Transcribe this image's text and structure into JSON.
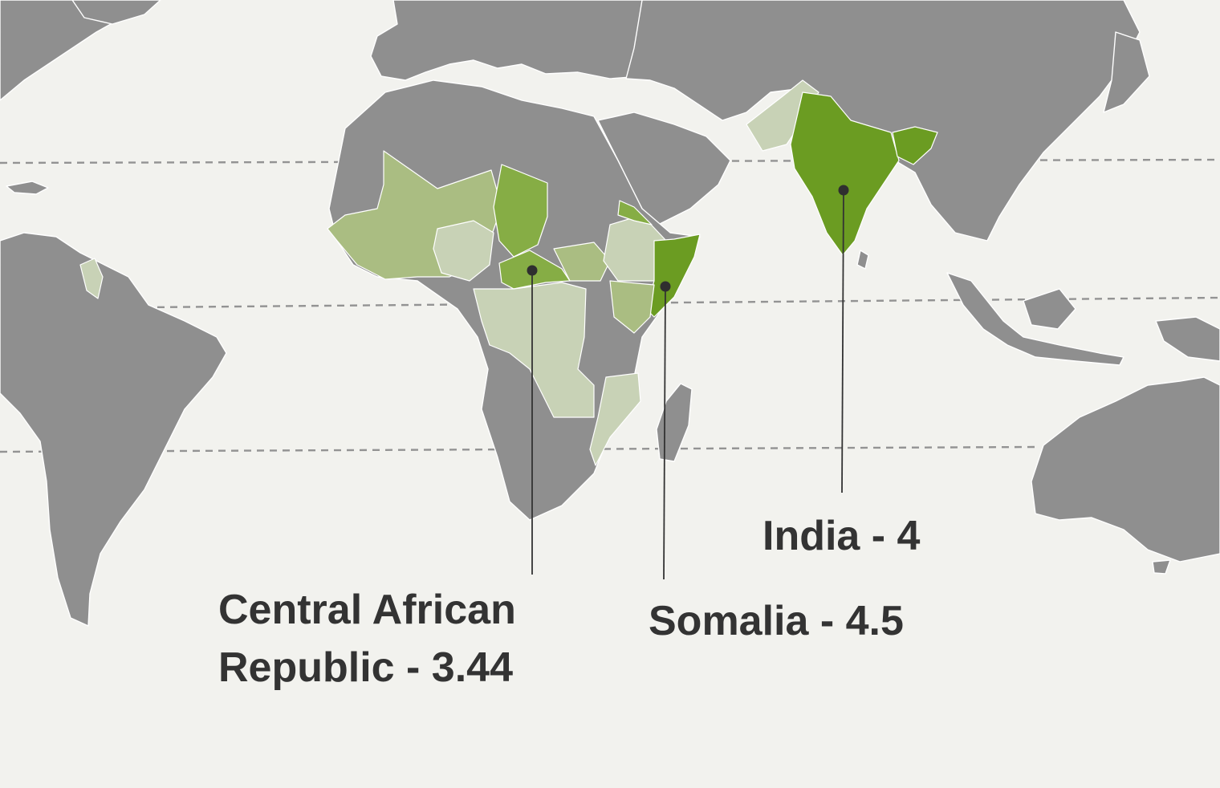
{
  "map": {
    "type": "choropleth",
    "colors": {
      "background": "#f2f2ee",
      "land": "#8f8f8f",
      "scale_low": "#c8d2b6",
      "scale_mid_low": "#aabd82",
      "scale_mid_high": "#86ad45",
      "scale_high": "#6b9c22",
      "label_text": "#333333"
    },
    "callouts": [
      {
        "country": "Central African Republic",
        "value": 3.44,
        "label": "Central African Republic - 3.44"
      },
      {
        "country": "Somalia",
        "value": 4.5,
        "label": "Somalia - 4.5"
      },
      {
        "country": "India",
        "value": 4,
        "label": "India - 4"
      }
    ]
  }
}
